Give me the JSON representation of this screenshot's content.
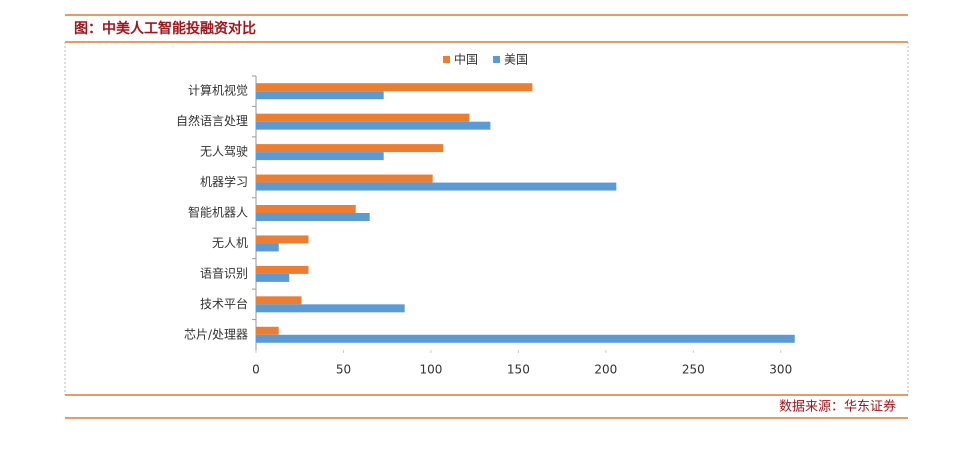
{
  "chart_data": {
    "type": "bar",
    "orientation": "horizontal",
    "title": "图：中美人工智能投融资对比",
    "source": "数据来源：华东证券",
    "categories": [
      "计算机视觉",
      "自然语言处理",
      "无人驾驶",
      "机器学习",
      "智能机器人",
      "无人机",
      "语音识别",
      "技术平台",
      "芯片/处理器"
    ],
    "series": [
      {
        "name": "中国",
        "color": "#ed7d31",
        "values": [
          158,
          122,
          107,
          101,
          57,
          30,
          30,
          26,
          13
        ]
      },
      {
        "name": "美国",
        "color": "#5b9bd5",
        "values": [
          73,
          134,
          73,
          206,
          65,
          13,
          19,
          85,
          308
        ]
      }
    ],
    "xlim": [
      0,
      315
    ],
    "xticks": [
      0,
      50,
      100,
      150,
      200,
      250,
      300
    ],
    "legend": "top"
  }
}
